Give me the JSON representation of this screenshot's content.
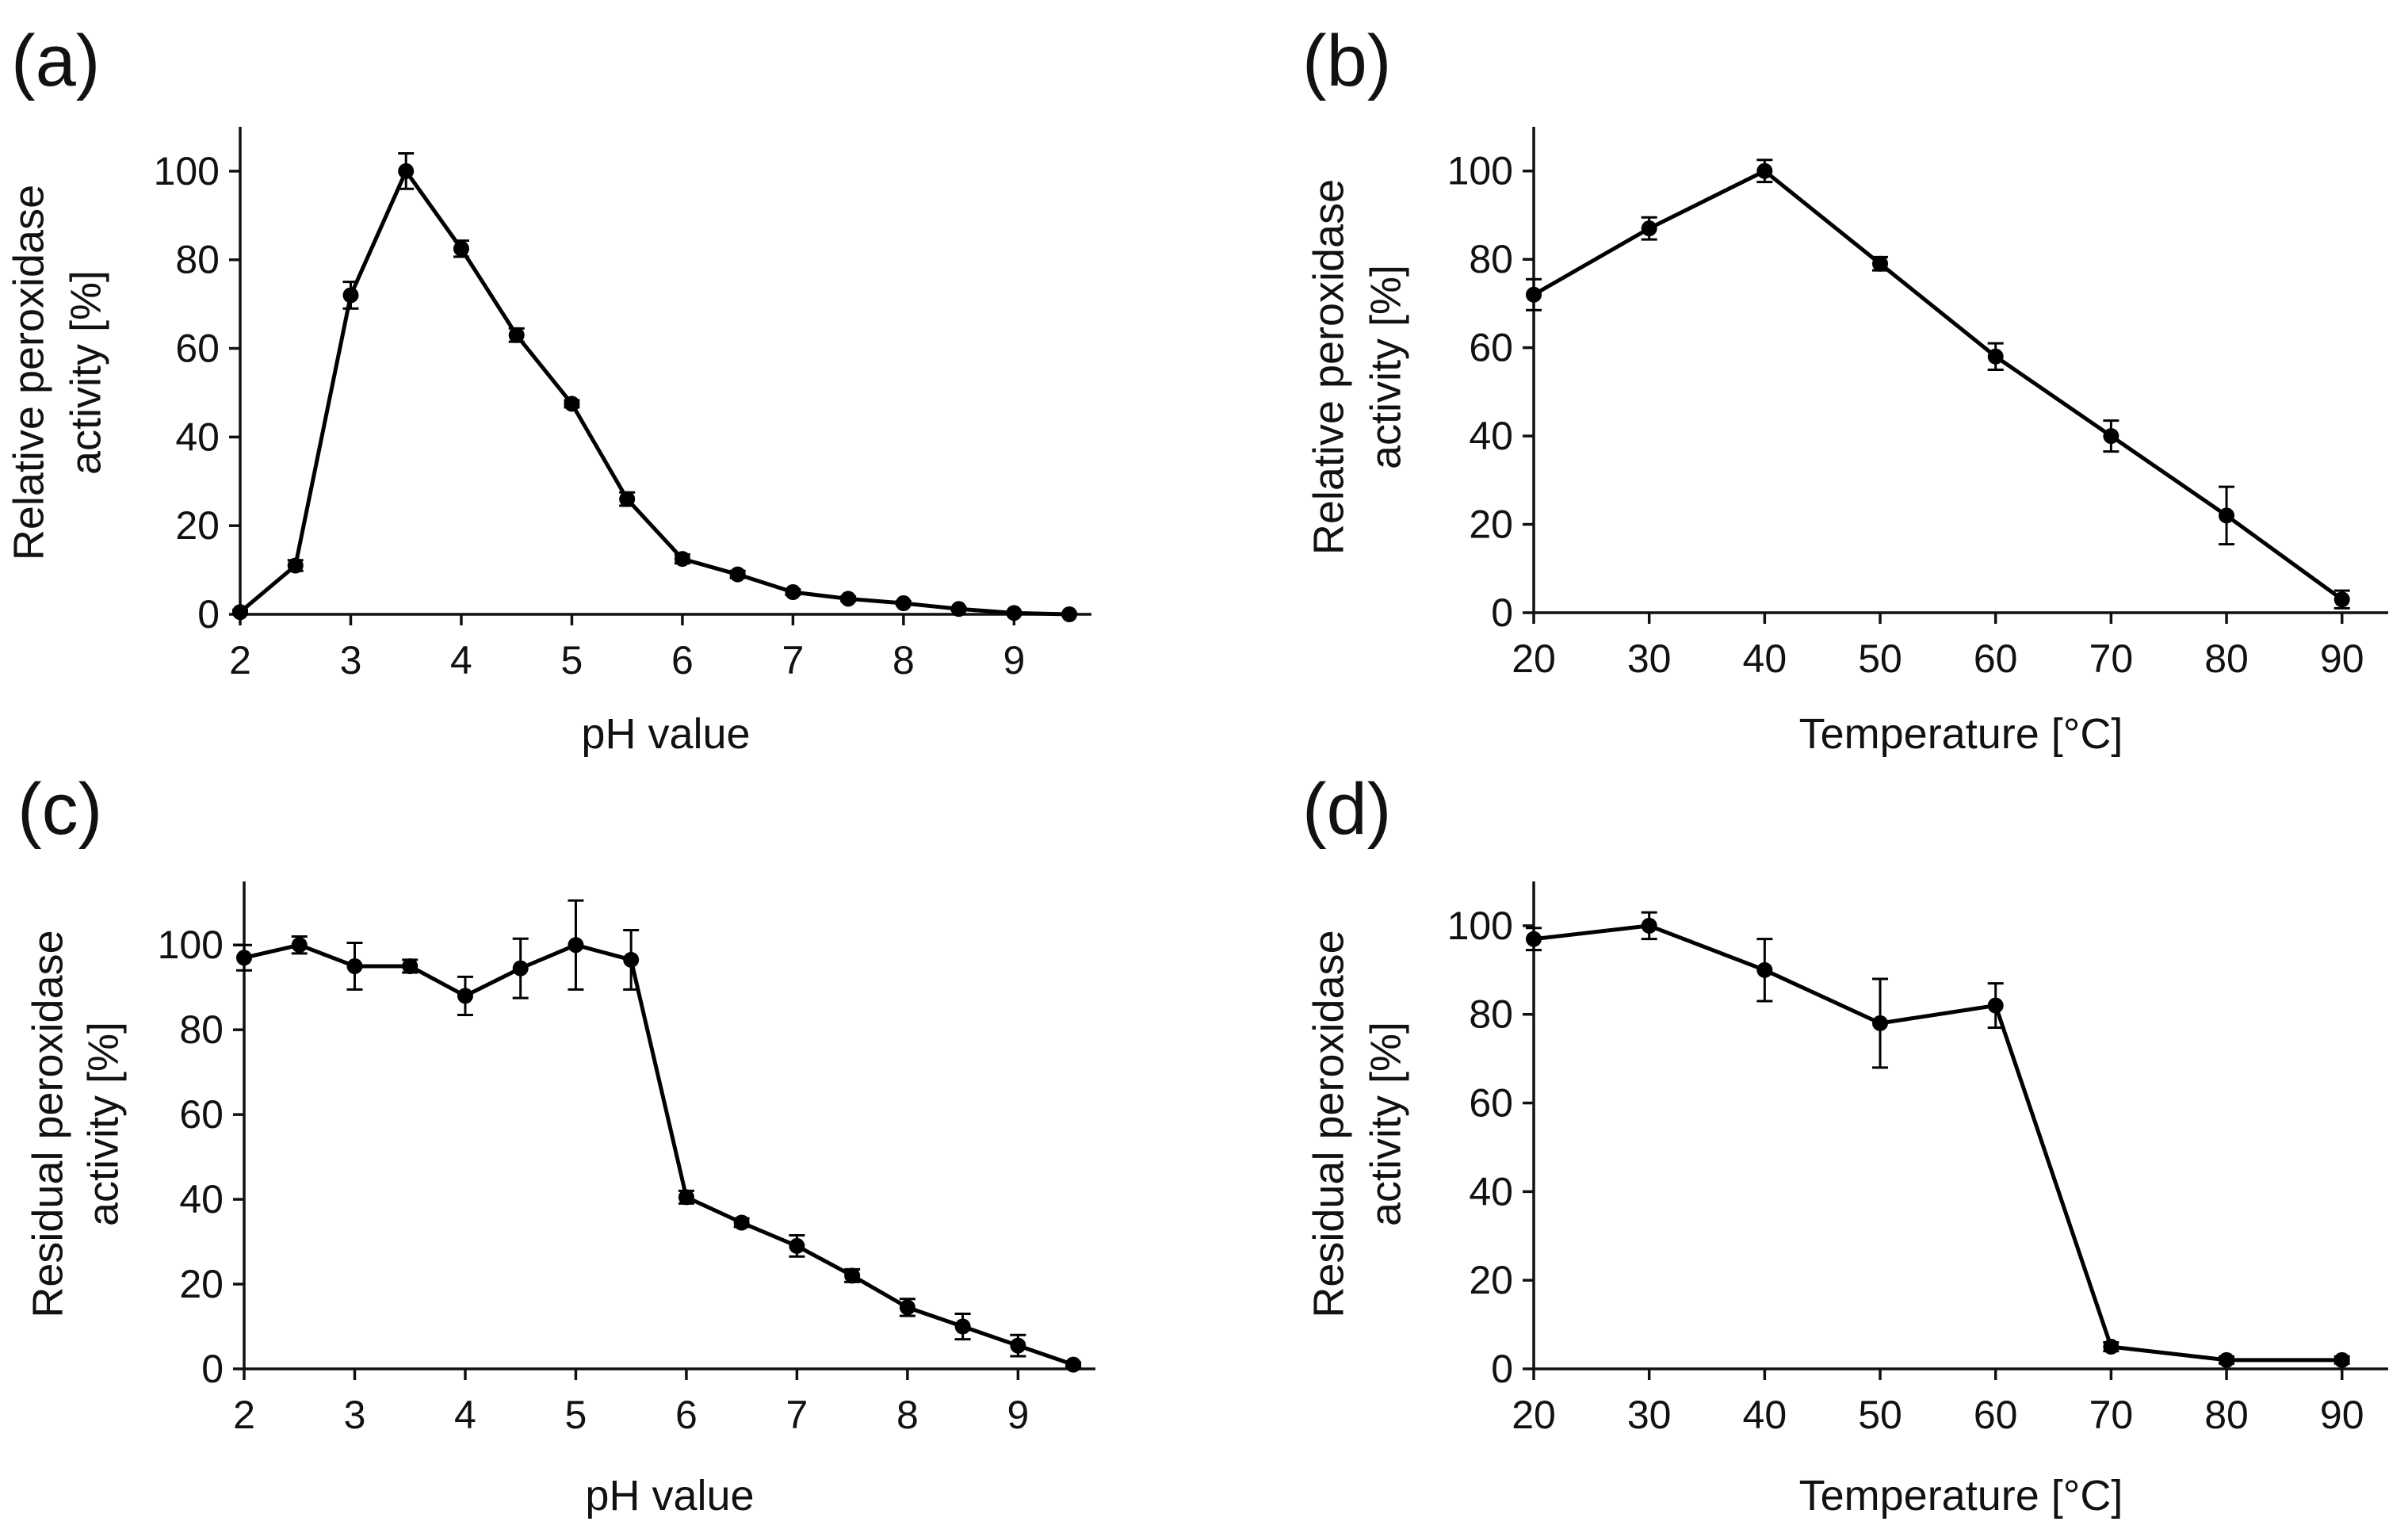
{
  "chart_data": [
    {
      "panel": "(a)",
      "type": "line",
      "xlabel": "pH value",
      "ylabel_lines": [
        "Relative  peroxidase",
        "activity [%]"
      ],
      "xlim": [
        2,
        9.7
      ],
      "ylim": [
        0,
        110
      ],
      "xticks": [
        2,
        3,
        4,
        5,
        6,
        7,
        8,
        9
      ],
      "yticks": [
        0,
        20,
        40,
        60,
        80,
        100
      ],
      "grid": false,
      "x": [
        2,
        2.5,
        3,
        3.5,
        4,
        4.5,
        5,
        5.5,
        6,
        6.5,
        7,
        7.5,
        8,
        8.5,
        9,
        9.5
      ],
      "y": [
        0.5,
        11,
        72,
        100,
        82.5,
        63,
        47.5,
        26,
        12.5,
        9,
        5,
        3.5,
        2.5,
        1.2,
        0.3,
        0
      ],
      "err": [
        0.5,
        1.2,
        3,
        4,
        1.8,
        1.5,
        0.8,
        1.5,
        1,
        0.8,
        0.6,
        0.5,
        0.4,
        0.3,
        0.2,
        0.2
      ]
    },
    {
      "panel": "(b)",
      "type": "line",
      "xlabel": "Temperature [°C]",
      "ylabel_lines": [
        "Relative peroxidase",
        "activity [%]"
      ],
      "xlim": [
        20,
        94
      ],
      "ylim": [
        0,
        110
      ],
      "xticks": [
        20,
        30,
        40,
        50,
        60,
        70,
        80,
        90
      ],
      "yticks": [
        0,
        20,
        40,
        60,
        80,
        100
      ],
      "grid": false,
      "x": [
        20,
        30,
        40,
        50,
        60,
        70,
        80,
        90
      ],
      "y": [
        72,
        87,
        100,
        79,
        58,
        40,
        22,
        3
      ],
      "err": [
        3.5,
        2.5,
        2.5,
        1.5,
        3,
        3.5,
        6.5,
        2
      ]
    },
    {
      "panel": "(c)",
      "type": "line",
      "xlabel": "pH value",
      "ylabel_lines": [
        "Residual  peroxidase",
        "activity [%]"
      ],
      "xlim": [
        2,
        9.7
      ],
      "ylim": [
        0,
        115
      ],
      "xticks": [
        2,
        3,
        4,
        5,
        6,
        7,
        8,
        9
      ],
      "yticks": [
        0,
        20,
        40,
        60,
        80,
        100
      ],
      "grid": false,
      "x": [
        2,
        2.5,
        3,
        3.5,
        4,
        4.5,
        5,
        5.5,
        6,
        6.5,
        7,
        7.5,
        8,
        8.5,
        9,
        9.5
      ],
      "y": [
        97,
        100,
        95,
        95,
        88,
        94.5,
        100,
        96.5,
        40.5,
        34.5,
        29,
        22,
        14.5,
        10,
        5.5,
        1
      ],
      "err": [
        3,
        2,
        5.5,
        1.5,
        4.5,
        7,
        10.5,
        7,
        1.5,
        1,
        2.5,
        1.5,
        2,
        3,
        2.5,
        0.5
      ]
    },
    {
      "panel": "(d)",
      "type": "line",
      "xlabel": "Temperature [°C]",
      "ylabel_lines": [
        "Residual peroxidase",
        "activity [%]"
      ],
      "xlim": [
        20,
        94
      ],
      "ylim": [
        0,
        110
      ],
      "xticks": [
        20,
        30,
        40,
        50,
        60,
        70,
        80,
        90
      ],
      "yticks": [
        0,
        20,
        40,
        60,
        80,
        100
      ],
      "grid": false,
      "x": [
        20,
        30,
        40,
        50,
        60,
        70,
        80,
        90
      ],
      "y": [
        97,
        100,
        90,
        78,
        82,
        5,
        2,
        2
      ],
      "err": [
        2.5,
        3,
        7,
        10,
        5,
        1,
        0.8,
        0.8
      ]
    }
  ]
}
